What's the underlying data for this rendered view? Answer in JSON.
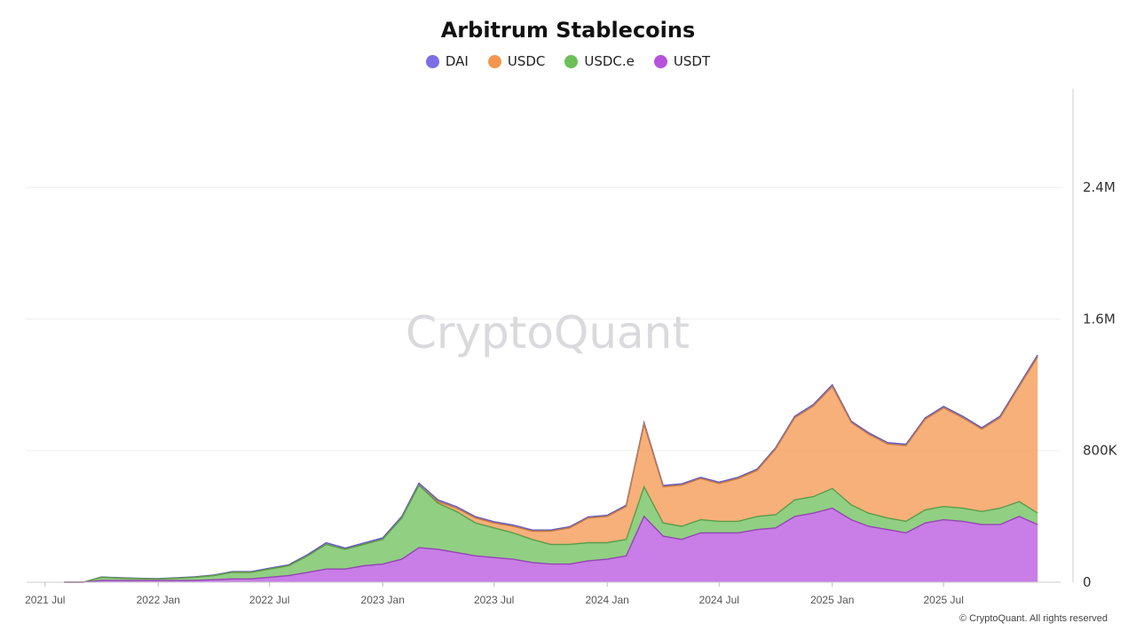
{
  "colors": {
    "DAI": "#7b6ee6",
    "USDC": "#f4964d",
    "USDC.e": "#6cbf59",
    "USDT": "#b653dd"
  },
  "watermark": "CryptoQuant",
  "footer": "© CryptoQuant. All rights reserved",
  "chart_data": {
    "type": "area",
    "stacked": true,
    "title": "Arbitrum Stablecoins",
    "legend_position": "top",
    "y_axis_position": "right",
    "grid": true,
    "ylim": [
      0,
      3000000
    ],
    "y_ticks": [
      {
        "value": 0,
        "label": "0"
      },
      {
        "value": 800000,
        "label": "800K"
      },
      {
        "value": 1600000,
        "label": "1.6M"
      },
      {
        "value": 2400000,
        "label": "2.4M"
      }
    ],
    "xlim": [
      "2021-06-01",
      "2025-12-31"
    ],
    "x_ticks": [
      {
        "date": "2021-07-01",
        "label": "2021 Jul"
      },
      {
        "date": "2022-01-01",
        "label": "2022 Jan"
      },
      {
        "date": "2022-07-01",
        "label": "2022 Jul"
      },
      {
        "date": "2023-01-01",
        "label": "2023 Jan"
      },
      {
        "date": "2023-07-01",
        "label": "2023 Jul"
      },
      {
        "date": "2024-01-01",
        "label": "2024 Jan"
      },
      {
        "date": "2024-07-01",
        "label": "2024 Jul"
      },
      {
        "date": "2025-01-01",
        "label": "2025 Jan"
      },
      {
        "date": "2025-07-01",
        "label": "2025 Jul"
      }
    ],
    "x": [
      "2021-08-01",
      "2021-09-01",
      "2021-10-01",
      "2021-11-01",
      "2021-12-01",
      "2022-01-01",
      "2022-02-01",
      "2022-03-01",
      "2022-04-01",
      "2022-05-01",
      "2022-06-01",
      "2022-07-01",
      "2022-08-01",
      "2022-09-01",
      "2022-10-01",
      "2022-11-01",
      "2022-12-01",
      "2023-01-01",
      "2023-02-01",
      "2023-03-01",
      "2023-04-01",
      "2023-05-01",
      "2023-06-01",
      "2023-07-01",
      "2023-08-01",
      "2023-09-01",
      "2023-10-01",
      "2023-11-01",
      "2023-12-01",
      "2024-01-01",
      "2024-02-01",
      "2024-03-01",
      "2024-04-01",
      "2024-05-01",
      "2024-06-01",
      "2024-07-01",
      "2024-08-01",
      "2024-09-01",
      "2024-10-01",
      "2024-11-01",
      "2024-12-01",
      "2025-01-01",
      "2025-02-01",
      "2025-03-01",
      "2025-04-01",
      "2025-05-01",
      "2025-06-01",
      "2025-07-01",
      "2025-08-01",
      "2025-09-01",
      "2025-10-01",
      "2025-11-01",
      "2025-12-01"
    ],
    "series": [
      {
        "name": "USDT",
        "values": [
          0,
          0,
          10000,
          10000,
          10000,
          10000,
          10000,
          10000,
          15000,
          20000,
          20000,
          30000,
          40000,
          60000,
          80000,
          80000,
          100000,
          110000,
          140000,
          210000,
          200000,
          180000,
          160000,
          150000,
          140000,
          120000,
          110000,
          110000,
          130000,
          140000,
          160000,
          400000,
          280000,
          260000,
          300000,
          300000,
          300000,
          320000,
          330000,
          400000,
          420000,
          450000,
          380000,
          340000,
          320000,
          300000,
          360000,
          380000,
          370000,
          350000,
          350000,
          400000,
          350000
        ]
      },
      {
        "name": "USDC.e",
        "values": [
          0,
          0,
          20000,
          15000,
          12000,
          10000,
          15000,
          20000,
          25000,
          40000,
          40000,
          50000,
          60000,
          100000,
          150000,
          120000,
          130000,
          150000,
          250000,
          380000,
          280000,
          250000,
          200000,
          180000,
          160000,
          140000,
          120000,
          120000,
          110000,
          100000,
          100000,
          180000,
          80000,
          80000,
          80000,
          70000,
          70000,
          80000,
          80000,
          100000,
          100000,
          120000,
          90000,
          80000,
          70000,
          70000,
          80000,
          80000,
          80000,
          80000,
          100000,
          90000,
          70000
        ]
      },
      {
        "name": "USDC",
        "values": [
          0,
          0,
          0,
          0,
          0,
          0,
          0,
          0,
          0,
          0,
          0,
          0,
          0,
          0,
          0,
          0,
          0,
          0,
          0,
          0,
          10000,
          20000,
          30000,
          30000,
          40000,
          50000,
          80000,
          100000,
          150000,
          160000,
          200000,
          380000,
          220000,
          250000,
          250000,
          230000,
          260000,
          280000,
          400000,
          500000,
          550000,
          620000,
          500000,
          480000,
          450000,
          460000,
          550000,
          600000,
          550000,
          500000,
          550000,
          700000,
          950000
        ]
      },
      {
        "name": "DAI",
        "values": [
          0,
          0,
          2000,
          2000,
          2000,
          2000,
          2000,
          3000,
          3000,
          4000,
          4000,
          5000,
          6000,
          8000,
          10000,
          8000,
          8000,
          9000,
          10000,
          12000,
          10000,
          9000,
          8000,
          8000,
          8000,
          7000,
          7000,
          7000,
          7000,
          7000,
          8000,
          10000,
          8000,
          8000,
          8000,
          8000,
          8000,
          8000,
          8000,
          9000,
          10000,
          10000,
          9000,
          9000,
          9000,
          9000,
          9000,
          9000,
          9000,
          9000,
          10000,
          10000,
          12000
        ]
      }
    ]
  }
}
